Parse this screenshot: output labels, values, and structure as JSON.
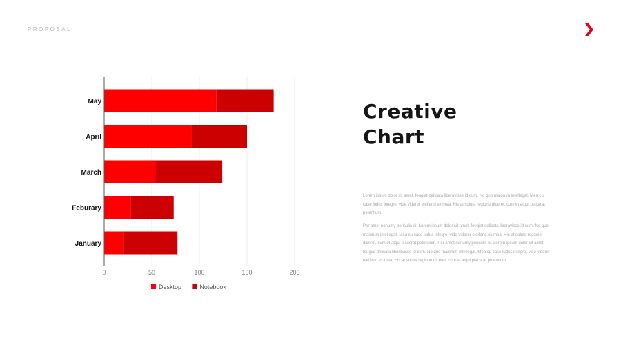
{
  "header": {
    "label": "PROPOSAL"
  },
  "brand": {
    "logo_icon": "red-chevron-right-icon",
    "color": "#e8001c"
  },
  "title": {
    "line1": "Creative",
    "line2": "Chart"
  },
  "body": {
    "paragraph1": "Lorem ipsum dolor sit amet, feugiat delicata liberavisse id cum. No quo maiorum intellegat. Mea cu case ludus integre, vide viderer eleifend ex mea. His at soluta regione diceret, cum et atqui placerat petentium.",
    "paragraph2": "Per amet nonumy periculis ei. Lorem ipsum dolor sit amet, feugiat delicata liberavisse id cum. No quo maiorum intellegat. Mea cu case ludus integre, vide viderer eleifend ex mea. His at soluta regione diceret, cum et atqui placerat petentium. Per amet nonumy periculis ei. Lorem ipsum dolor sit amet, feugiat delicata liberavisse id cum. No quo maiorum intellegat. Mea cu case ludus integre, vide viderer eleifend ex mea. His at soluta regione diceret, cum et atqui placerat petentium."
  },
  "chart_data": {
    "type": "bar",
    "orientation": "horizontal",
    "stacked": true,
    "categories": [
      "May",
      "April",
      "March",
      "Feburary",
      "January"
    ],
    "series": [
      {
        "name": "Desktop",
        "color": "#ff0000",
        "values": [
          118,
          92,
          54,
          28,
          20
        ]
      },
      {
        "name": "Notebook",
        "color": "#cc0000",
        "values": [
          60,
          58,
          70,
          45,
          57
        ]
      }
    ],
    "xlim": [
      0,
      200
    ],
    "xticks": [
      0,
      50,
      100,
      150,
      200
    ],
    "grid": true,
    "legend": "bottom",
    "title": "",
    "xlabel": "",
    "ylabel": ""
  }
}
